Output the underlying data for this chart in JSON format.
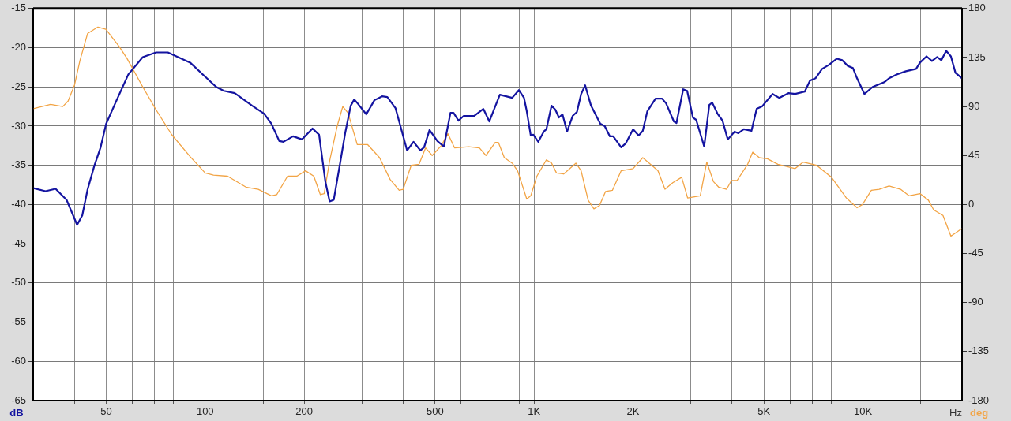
{
  "chart_data": {
    "type": "line",
    "xlabel": "Hz",
    "ylabel": "dB",
    "y2label": "deg",
    "log": "x",
    "grid": true,
    "marker": "none",
    "xlim": [
      30,
      20000
    ],
    "xticks": [
      {
        "value": 40,
        "label": null
      },
      50,
      {
        "value": 60,
        "label": null
      },
      {
        "value": 70,
        "label": null
      },
      {
        "value": 80,
        "label": null
      },
      {
        "value": 90,
        "label": null
      },
      100,
      {
        "value": 150,
        "label": null
      },
      200,
      {
        "value": 300,
        "label": null
      },
      {
        "value": 400,
        "label": null
      },
      500,
      {
        "value": 600,
        "label": null
      },
      {
        "value": 700,
        "label": null
      },
      {
        "value": 800,
        "label": null
      },
      {
        "value": 900,
        "label": null
      },
      {
        "value": 1000,
        "label": "1K"
      },
      {
        "value": 1500,
        "label": null
      },
      {
        "value": 2000,
        "label": "2K"
      },
      {
        "value": 3000,
        "label": null
      },
      {
        "value": 4000,
        "label": null
      },
      {
        "value": 5000,
        "label": "5K"
      },
      {
        "value": 6000,
        "label": null
      },
      {
        "value": 7000,
        "label": null
      },
      {
        "value": 8000,
        "label": null
      },
      {
        "value": 9000,
        "label": null
      },
      {
        "value": 10000,
        "label": "10K"
      },
      {
        "value": 15000,
        "label": null
      }
    ],
    "ylim": [
      -65,
      -15
    ],
    "yticks": [
      -65,
      -60,
      -55,
      -50,
      -45,
      -40,
      -35,
      -30,
      -25,
      -20,
      -15
    ],
    "y2lim": [
      -180,
      180
    ],
    "y2ticks": [
      -180,
      -135,
      -90,
      -45,
      0,
      45,
      90,
      135,
      180
    ],
    "series": [
      {
        "color": "#1414a0",
        "x": [
          30,
          32.7,
          35.1,
          37.9,
          40.8,
          42.3,
          43.9,
          46,
          48.1,
          50,
          53.8,
          58.4,
          64.6,
          70.9,
          77,
          90,
          100,
          108,
          114,
          123,
          139,
          151,
          159,
          168,
          173,
          185,
          197,
          212,
          222,
          232,
          239,
          246,
          257,
          267,
          277,
          284,
          292,
          309,
          327,
          345,
          358,
          379,
          393,
          411,
          430,
          451,
          463,
          481,
          508,
          532,
          557,
          569,
          589,
          611,
          657,
          701,
          731,
          755,
          787,
          858,
          899,
          932,
          950,
          977,
          995,
          1030,
          1070,
          1090,
          1130,
          1160,
          1190,
          1220,
          1260,
          1310,
          1350,
          1390,
          1430,
          1490,
          1590,
          1640,
          1700,
          1740,
          1840,
          1900,
          2000,
          2080,
          2140,
          2210,
          2340,
          2450,
          2520,
          2660,
          2710,
          2840,
          2920,
          3040,
          3110,
          3290,
          3410,
          3480,
          3610,
          3740,
          3880,
          4070,
          4180,
          4340,
          4580,
          4750,
          4930,
          5310,
          5560,
          5930,
          6220,
          6650,
          6900,
          7170,
          7510,
          7870,
          8330,
          8650,
          8980,
          9320,
          9590,
          10100,
          10700,
          11600,
          12000,
          12700,
          13500,
          14500,
          14900,
          15600,
          16200,
          16800,
          17300,
          17900,
          18500,
          19100,
          20000
        ],
        "values": [
          -37.9,
          -38.3,
          -38.0,
          -39.4,
          -42.6,
          -41.4,
          -38.1,
          -35.1,
          -32.7,
          -29.7,
          -26.7,
          -23.4,
          -21.2,
          -20.6,
          -20.6,
          -21.9,
          -23.7,
          -25.0,
          -25.5,
          -25.8,
          -27.4,
          -28.4,
          -29.7,
          -31.9,
          -32.0,
          -31.3,
          -31.7,
          -30.3,
          -31.1,
          -37.1,
          -39.6,
          -39.4,
          -34.8,
          -30.7,
          -27.4,
          -26.6,
          -27.2,
          -28.5,
          -26.7,
          -26.2,
          -26.3,
          -27.7,
          -30.1,
          -33.1,
          -32.0,
          -33.1,
          -32.7,
          -30.5,
          -31.9,
          -32.6,
          -28.3,
          -28.3,
          -29.3,
          -28.7,
          -28.7,
          -27.8,
          -29.4,
          -27.9,
          -26.0,
          -26.4,
          -25.4,
          -26.4,
          -28.1,
          -31.2,
          -31.1,
          -32.0,
          -30.7,
          -30.4,
          -27.4,
          -27.9,
          -28.9,
          -28.5,
          -30.7,
          -28.7,
          -28.2,
          -25.9,
          -24.8,
          -27.4,
          -29.7,
          -30.0,
          -31.3,
          -31.3,
          -32.7,
          -32.2,
          -30.4,
          -31.2,
          -30.6,
          -28.1,
          -26.5,
          -26.5,
          -27.1,
          -29.4,
          -29.6,
          -25.3,
          -25.5,
          -28.9,
          -29.2,
          -32.6,
          -27.3,
          -27.0,
          -28.4,
          -29.3,
          -31.7,
          -30.7,
          -30.9,
          -30.4,
          -30.6,
          -27.8,
          -27.5,
          -25.9,
          -26.4,
          -25.8,
          -25.9,
          -25.6,
          -24.2,
          -23.9,
          -22.7,
          -22.2,
          -21.4,
          -21.6,
          -22.3,
          -22.6,
          -23.9,
          -25.9,
          -25.0,
          -24.4,
          -23.9,
          -23.4,
          -23.0,
          -22.7,
          -21.9,
          -21.1,
          -21.7,
          -21.2,
          -21.6,
          -20.4,
          -21.1,
          -23.2,
          -23.9
        ]
      },
      {
        "color": "#f2a445",
        "axis": "y2",
        "x": [
          30,
          33.9,
          36.9,
          38.3,
          40.1,
          41.6,
          43.9,
          47.2,
          49.9,
          54.8,
          57.9,
          64.6,
          70.9,
          79.2,
          90,
          100,
          106,
          117,
          133,
          145,
          159,
          165,
          178,
          190,
          202,
          214,
          224,
          230,
          239,
          252,
          262,
          272,
          290,
          312,
          339,
          365,
          389,
          400,
          423,
          447,
          468,
          490,
          522,
          547,
          573,
          633,
          682,
          714,
          762,
          779,
          812,
          858,
          891,
          950,
          977,
          1020,
          1090,
          1130,
          1170,
          1230,
          1340,
          1390,
          1460,
          1520,
          1580,
          1650,
          1730,
          1840,
          2000,
          2140,
          2320,
          2380,
          2500,
          2640,
          2810,
          2930,
          3200,
          3350,
          3510,
          3640,
          3850,
          3980,
          4140,
          4460,
          4620,
          4840,
          5120,
          5510,
          6220,
          6580,
          7230,
          8020,
          8900,
          9590,
          9960,
          10600,
          11200,
          12000,
          13000,
          13800,
          14900,
          15800,
          16400,
          17500,
          18500,
          20000
        ],
        "values": [
          88,
          92,
          90,
          95,
          110,
          132,
          157,
          163,
          161,
          145,
          134,
          108,
          87,
          64,
          44,
          29,
          27,
          26,
          16,
          14,
          8,
          9,
          26,
          26,
          31,
          26,
          9,
          10,
          40,
          72,
          90,
          84,
          55,
          55,
          43,
          23,
          13,
          14,
          36,
          37,
          52,
          45,
          54,
          65,
          52,
          53,
          52,
          45,
          57,
          57,
          43,
          38,
          31,
          5,
          8,
          26,
          41,
          38,
          29,
          28,
          38,
          31,
          4,
          -4,
          -1,
          12,
          13,
          31,
          33,
          43,
          34,
          31,
          14,
          20,
          25,
          6,
          8,
          39,
          21,
          16,
          14,
          22,
          22,
          37,
          48,
          43,
          42,
          37,
          33,
          39,
          36,
          25,
          6,
          -3,
          0,
          13,
          14,
          17,
          14,
          8,
          10,
          4,
          -5,
          -10,
          -29,
          -22
        ]
      }
    ]
  }
}
